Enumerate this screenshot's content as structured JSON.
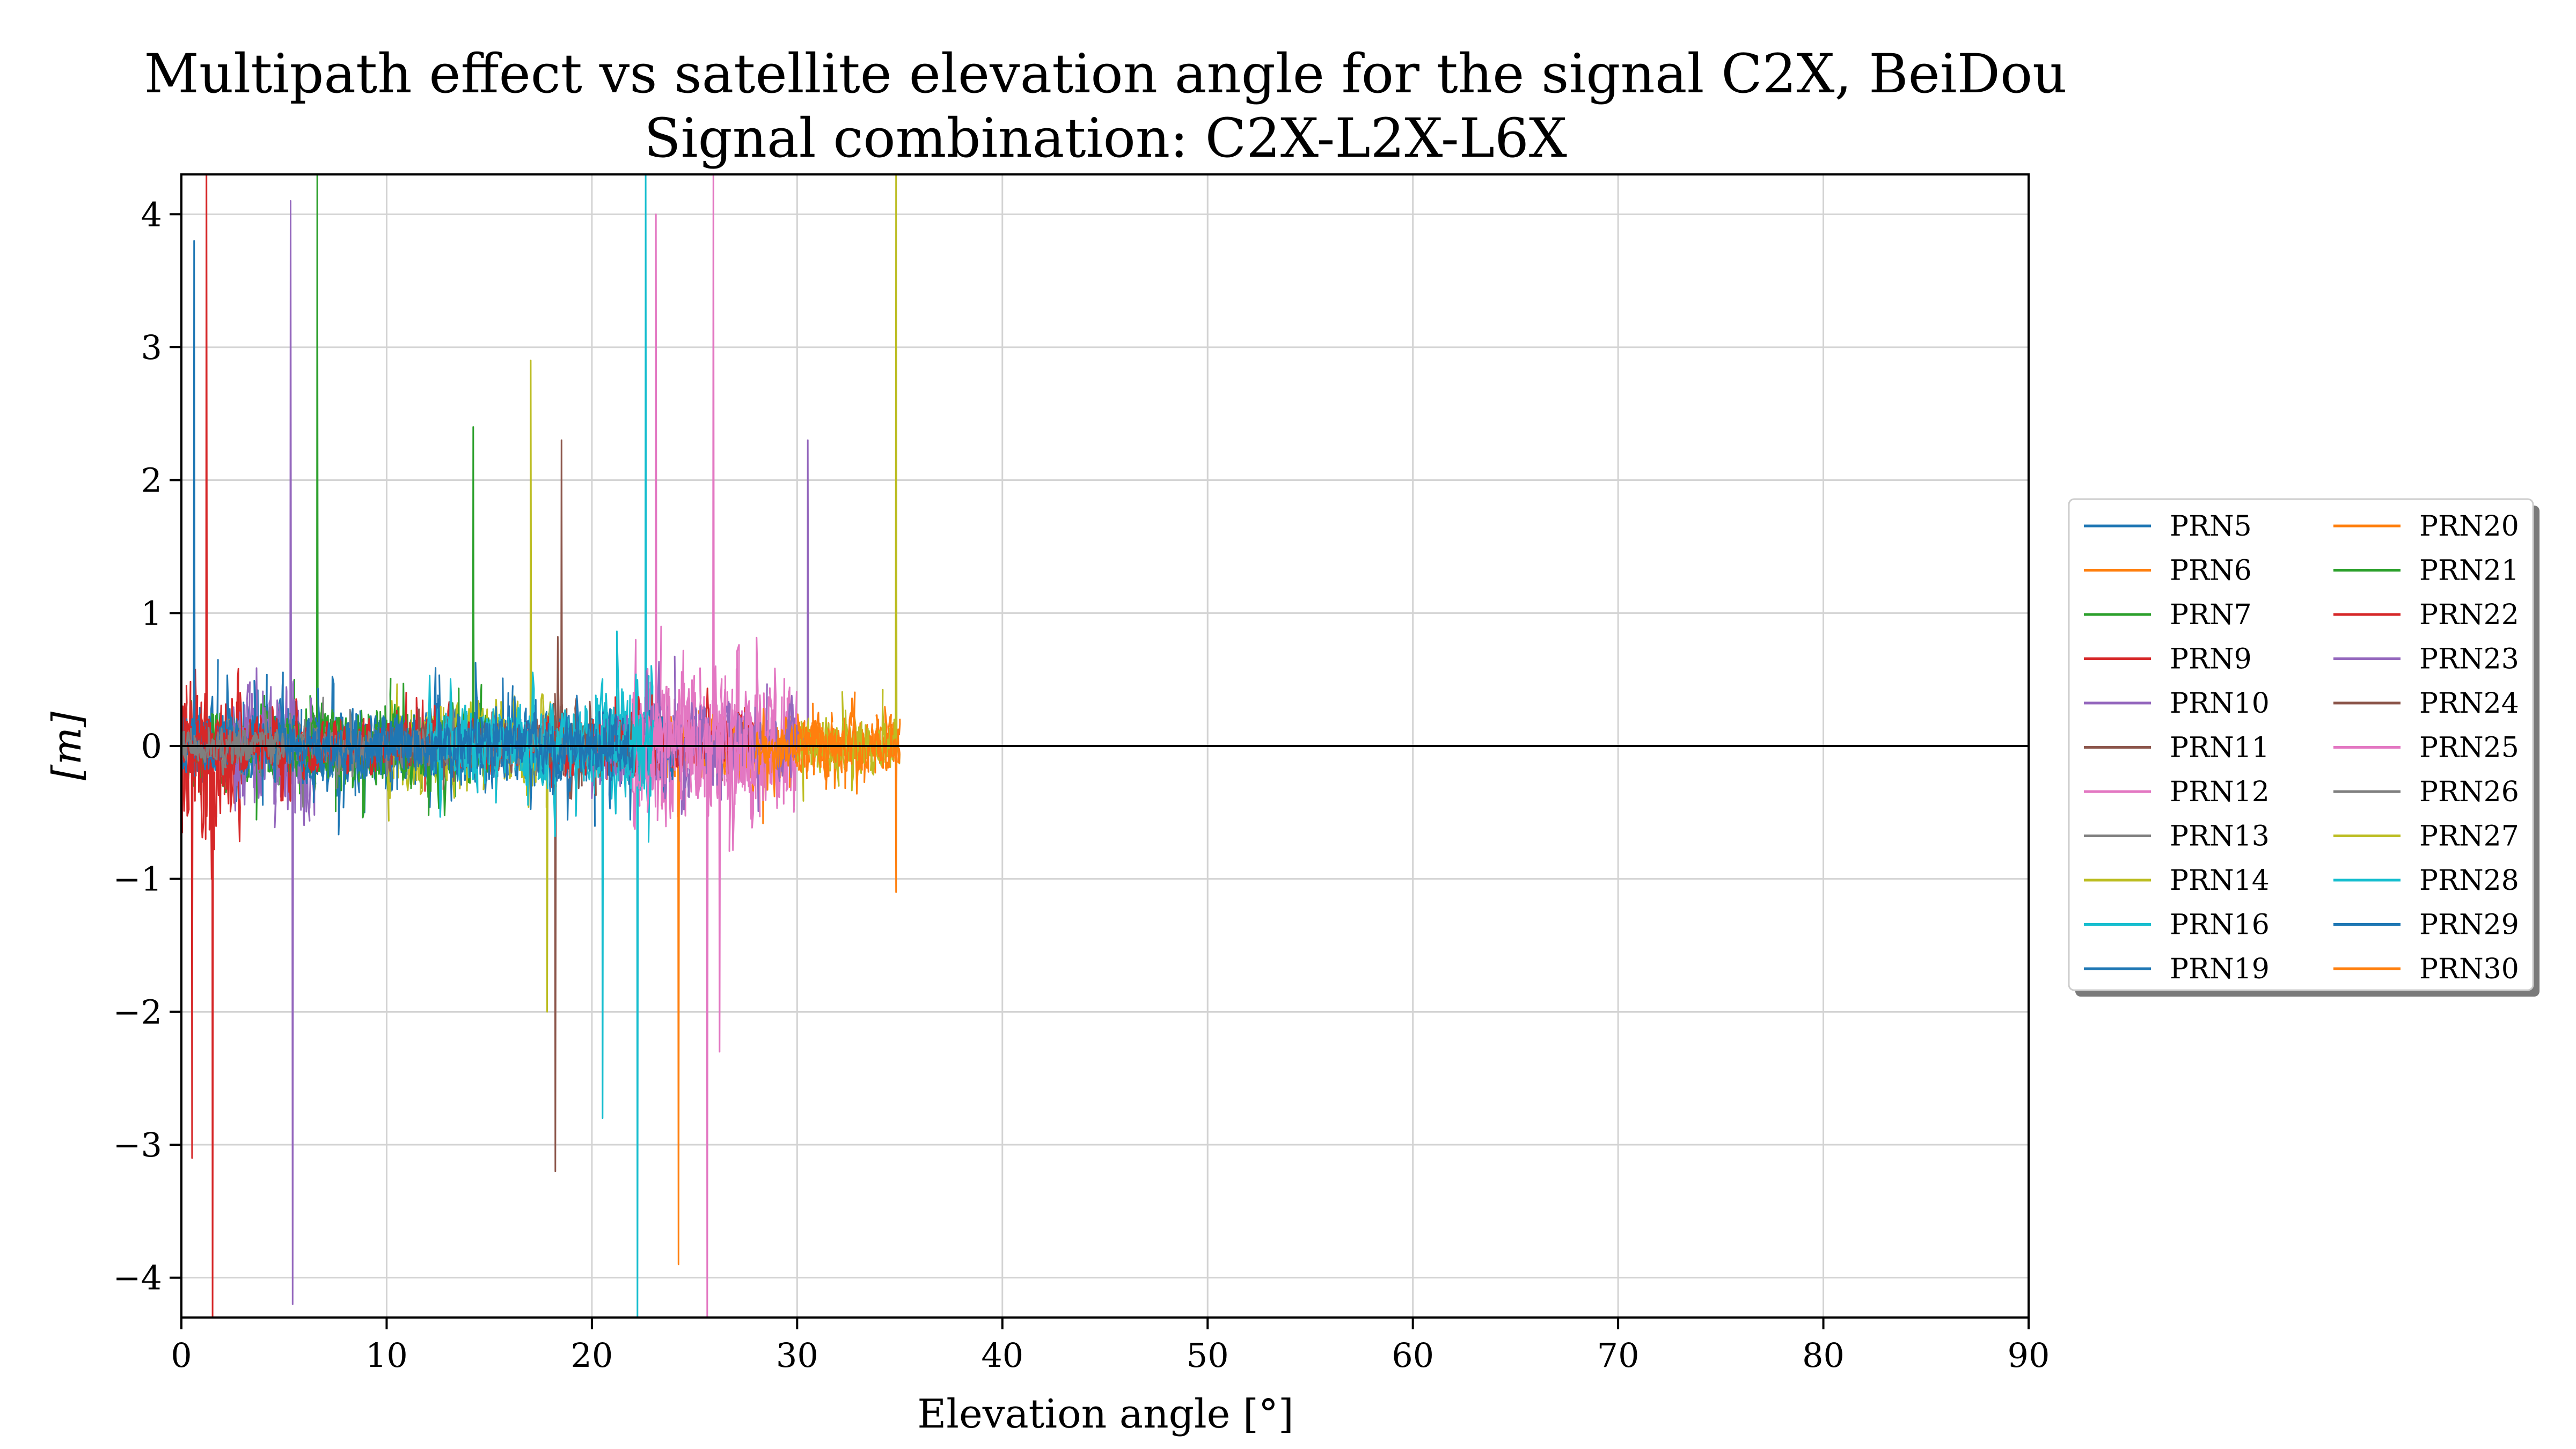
{
  "chart_data": {
    "type": "line",
    "title": "Multipath effect vs satellite elevation angle for the signal C2X, BeiDou",
    "subtitle": "Signal combination: C2X-L2X-L6X",
    "xlabel": "Elevation angle [°]",
    "ylabel": "[m]",
    "xlim": [
      0,
      90
    ],
    "ylim": [
      -4.3,
      4.3
    ],
    "xticks": [
      0,
      10,
      20,
      30,
      40,
      50,
      60,
      70,
      80,
      90
    ],
    "yticks": [
      -4,
      -3,
      -2,
      -1,
      0,
      1,
      2,
      3,
      4
    ],
    "xtick_labels": [
      "0",
      "10",
      "20",
      "30",
      "40",
      "50",
      "60",
      "70",
      "80",
      "90"
    ],
    "ytick_labels": [
      "−4",
      "−3",
      "−2",
      "−1",
      "0",
      "1",
      "2",
      "3",
      "4"
    ],
    "grid": true,
    "zero_line": true,
    "legend_position": "right, outside plot",
    "legend_columns": 2,
    "series": [
      {
        "name": "PRN5",
        "color": "#1f77b4",
        "x_range": [
          0.5,
          22
        ],
        "amplitude": 0.45
      },
      {
        "name": "PRN6",
        "color": "#ff7f0e",
        "x_range": [
          22,
          32
        ],
        "amplitude": 0.35
      },
      {
        "name": "PRN7",
        "color": "#2ca02c",
        "x_range": [
          0,
          15
        ],
        "amplitude": 0.45,
        "spikes": [
          [
            6.6,
            4.3
          ],
          [
            14.2,
            2.4
          ]
        ]
      },
      {
        "name": "PRN9",
        "color": "#d62728",
        "x_range": [
          0,
          3
        ],
        "amplitude": 0.9,
        "spikes": [
          [
            1.2,
            4.3
          ],
          [
            1.5,
            -4.3
          ]
        ]
      },
      {
        "name": "PRN10",
        "color": "#9467bd",
        "x_range": [
          2.5,
          6.5
        ],
        "amplitude": 0.8,
        "spikes": [
          [
            5.3,
            4.1
          ],
          [
            5.4,
            -4.2
          ]
        ]
      },
      {
        "name": "PRN11",
        "color": "#8c564b",
        "x_range": [
          18,
          19.5
        ],
        "amplitude": 0.6,
        "spikes": [
          [
            18.5,
            2.3
          ],
          [
            18.2,
            -3.2
          ]
        ]
      },
      {
        "name": "PRN12",
        "color": "#e377c2",
        "x_range": [
          22,
          30
        ],
        "amplitude": 0.8,
        "spikes": [
          [
            25.9,
            4.3
          ],
          [
            25.6,
            -4.3
          ]
        ]
      },
      {
        "name": "PRN13",
        "color": "#7f7f7f",
        "x_range": [
          2,
          8
        ],
        "amplitude": 0.3
      },
      {
        "name": "PRN14",
        "color": "#bcbd22",
        "x_range": [
          10,
          18
        ],
        "amplitude": 0.5,
        "spikes": [
          [
            17.0,
            2.9
          ],
          [
            17.8,
            -2.0
          ]
        ]
      },
      {
        "name": "PRN16",
        "color": "#17becf",
        "x_range": [
          20,
          23
        ],
        "amplitude": 0.7,
        "spikes": [
          [
            22.6,
            4.3
          ],
          [
            22.2,
            -4.3
          ]
        ]
      },
      {
        "name": "PRN19",
        "color": "#1f77b4",
        "x_range": [
          0,
          24
        ],
        "amplitude": 0.35,
        "spikes": [
          [
            0.6,
            3.8
          ]
        ]
      },
      {
        "name": "PRN20",
        "color": "#ff7f0e",
        "x_range": [
          24,
          35
        ],
        "amplitude": 0.3,
        "spikes": [
          [
            24.2,
            -3.9
          ],
          [
            34.8,
            -1.1
          ]
        ]
      },
      {
        "name": "PRN21",
        "color": "#2ca02c",
        "x_range": [
          5,
          15
        ],
        "amplitude": 0.35
      },
      {
        "name": "PRN22",
        "color": "#d62728",
        "x_range": [
          0,
          28
        ],
        "amplitude": 0.3,
        "spikes": [
          [
            0.5,
            -3.1
          ]
        ]
      },
      {
        "name": "PRN23",
        "color": "#9467bd",
        "x_range": [
          20,
          30
        ],
        "amplitude": 0.45,
        "spikes": [
          [
            30.5,
            2.3
          ]
        ]
      },
      {
        "name": "PRN24",
        "color": "#8c564b",
        "x_range": [
          10,
          22
        ],
        "amplitude": 0.25
      },
      {
        "name": "PRN25",
        "color": "#e377c2",
        "x_range": [
          22,
          29
        ],
        "amplitude": 0.6,
        "spikes": [
          [
            23.1,
            4.0
          ],
          [
            26.2,
            -2.3
          ]
        ]
      },
      {
        "name": "PRN26",
        "color": "#7f7f7f",
        "x_range": [
          0,
          20
        ],
        "amplitude": 0.2
      },
      {
        "name": "PRN27",
        "color": "#bcbd22",
        "x_range": [
          30,
          35
        ],
        "amplitude": 0.3,
        "spikes": [
          [
            34.8,
            4.3
          ]
        ]
      },
      {
        "name": "PRN28",
        "color": "#17becf",
        "x_range": [
          12,
          23
        ],
        "amplitude": 0.45,
        "spikes": [
          [
            20.5,
            -2.8
          ]
        ]
      },
      {
        "name": "PRN29",
        "color": "#1f77b4",
        "x_range": [
          5,
          22
        ],
        "amplitude": 0.3
      },
      {
        "name": "PRN30",
        "color": "#ff7f0e",
        "x_range": [
          28,
          35
        ],
        "amplitude": 0.25
      }
    ]
  }
}
